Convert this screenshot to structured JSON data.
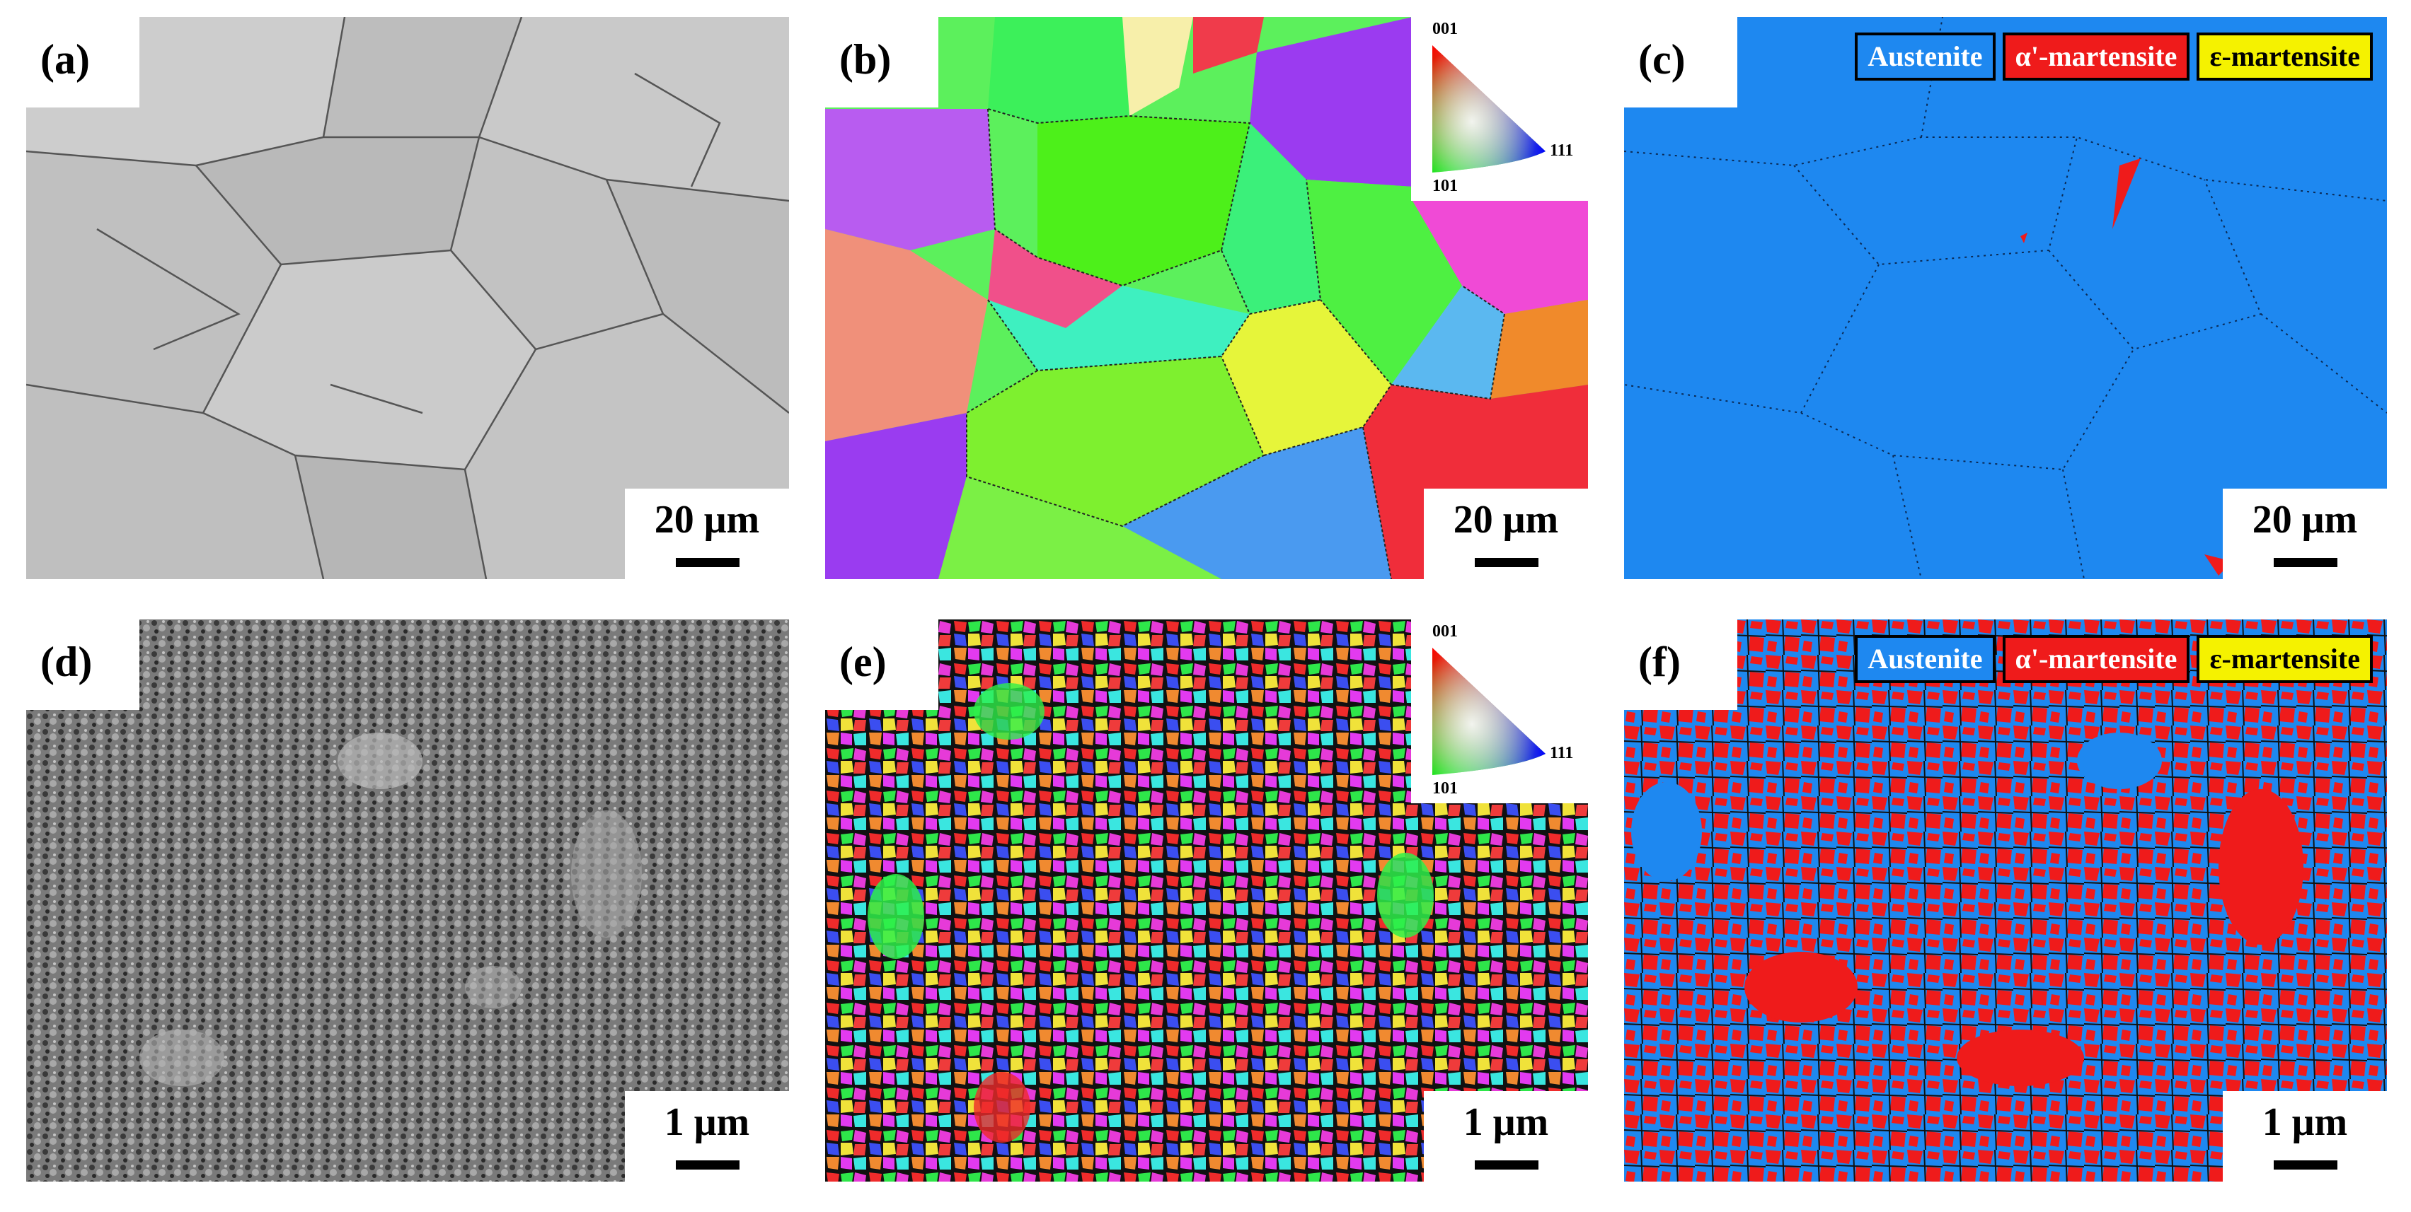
{
  "panels": [
    {
      "id": "a",
      "label": "(a)",
      "scale": "20 μm"
    },
    {
      "id": "b",
      "label": "(b)",
      "scale": "20 μm"
    },
    {
      "id": "c",
      "label": "(c)",
      "scale": "20 μm"
    },
    {
      "id": "d",
      "label": "(d)",
      "scale": "1 μm"
    },
    {
      "id": "e",
      "label": "(e)",
      "scale": "1 μm"
    },
    {
      "id": "f",
      "label": "(f)",
      "scale": "1 μm"
    }
  ],
  "ipf_key": {
    "top": "001",
    "bottom": "101",
    "right": "111"
  },
  "phase_legend": [
    {
      "name": "Austenite",
      "color": "#1e88f0",
      "text_color": "#ffffff"
    },
    {
      "name": "α'-martensite",
      "color": "#ef1b1b",
      "text_color": "#ffffff"
    },
    {
      "name": "ε-martensite",
      "color": "#f5f200",
      "text_color": "#000000"
    }
  ],
  "colors": {
    "austenite": "#1e88f0",
    "martensite": "#ef1b1b",
    "grain_gray": "#c8c8c8"
  }
}
